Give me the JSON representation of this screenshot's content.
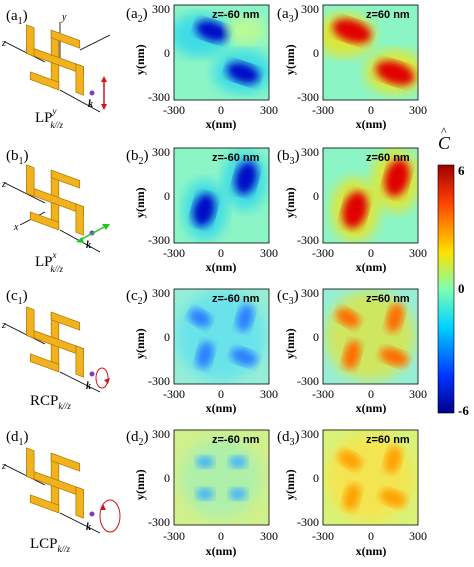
{
  "panels": {
    "a1": "(a",
    "a2": "(a",
    "a3": "(a",
    "b1": "(b",
    "b2": "(b",
    "b3": "(b",
    "c1": "(c",
    "c2": "(c",
    "c3": "(c",
    "d1": "(d",
    "d2": "(d",
    "d3": "(d",
    "sub1": "1",
    "sub2": "2",
    "sub3": "3",
    "close": ")"
  },
  "z_labels": {
    "neg": "z=-60 nm",
    "pos": "z=60 nm"
  },
  "axes": {
    "xlabel": "x(nm)",
    "ylabel": "y(nm)",
    "ticks": [
      "-300",
      "0",
      "300"
    ]
  },
  "polarizations": {
    "a": {
      "main": "LP",
      "sup": "y",
      "sub": "k//z"
    },
    "b": {
      "main": "LP",
      "sup": "x",
      "sub": "k//z"
    },
    "c": {
      "main": "RCP",
      "sup": "",
      "sub": "k//z"
    },
    "d": {
      "main": "LCP",
      "sup": "",
      "sub": "k//z"
    }
  },
  "schematic": {
    "x": "x",
    "y": "y",
    "z": "z",
    "k": "k"
  },
  "colorbar": {
    "label": "C",
    "hat": "^",
    "ticks": [
      "6",
      "0",
      "-6"
    ],
    "colors": [
      "#00008b",
      "#0033ff",
      "#00d4ff",
      "#7fffb0",
      "#ffe000",
      "#ff6000",
      "#b00000"
    ]
  }
}
